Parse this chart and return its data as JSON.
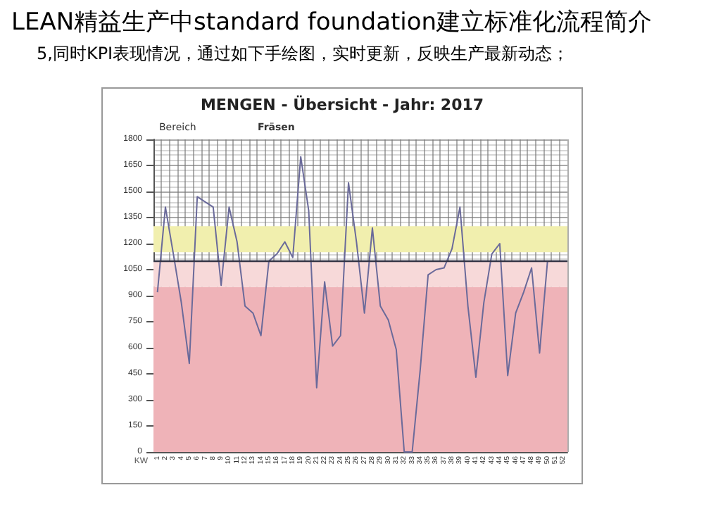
{
  "chart_data": {
    "type": "line",
    "title": "LEAN精益生产中standard foundation建立标准化流程简介",
    "subtitle": "5,同时KPI表现情况，通过如下手绘图，实时更新，反映生产最新动态；",
    "annotations": [
      "MENGEN - Übersicht - Jahr: 2017",
      "Bereich",
      "Fräsen"
    ],
    "xlabel": "KW",
    "categories": [
      "1",
      "2",
      "3",
      "4",
      "5",
      "6",
      "7",
      "8",
      "9",
      "10",
      "11",
      "12",
      "13",
      "14",
      "15",
      "16",
      "17",
      "18",
      "19",
      "20",
      "21",
      "22",
      "23",
      "24",
      "25",
      "26",
      "27",
      "28",
      "29",
      "30",
      "31",
      "32",
      "33",
      "34",
      "35",
      "36",
      "37",
      "38",
      "39",
      "40",
      "41",
      "42",
      "43",
      "44",
      "45",
      "46",
      "47",
      "48",
      "49",
      "50",
      "51",
      "52"
    ],
    "series": [
      {
        "color": "#6a6a9a",
        "values": [
          920,
          1410,
          1140,
          860,
          510,
          1470,
          1440,
          1410,
          960,
          1410,
          1210,
          840,
          800,
          670,
          1100,
          1140,
          1210,
          1120,
          1700,
          1390,
          370,
          980,
          610,
          670,
          1550,
          1210,
          800,
          1290,
          840,
          760,
          590,
          0,
          0,
          470,
          1020,
          1050,
          1060,
          1170,
          1410,
          840,
          430,
          860,
          1140,
          1200,
          440,
          800,
          920,
          1060,
          570,
          1100,
          null,
          null
        ]
      }
    ],
    "ylim": [
      0,
      1800
    ],
    "yticks": [
      0,
      150,
      300,
      450,
      600,
      750,
      900,
      1050,
      1200,
      1350,
      1500,
      1650,
      1800
    ],
    "grid": true,
    "marker": "none",
    "line_style": "solid",
    "bands": [
      {
        "axis": "y",
        "from": 0,
        "to": 950,
        "color": "#efb3b8"
      },
      {
        "axis": "y",
        "from": 950,
        "to": 1100,
        "color": "#f7d9d9"
      },
      {
        "axis": "y",
        "from": 1150,
        "to": 1300,
        "color": "#f1efae"
      }
    ],
    "ref_lines": [
      {
        "axis": "y",
        "value": 1100,
        "color": "#333344",
        "line_style": "solid"
      }
    ]
  }
}
